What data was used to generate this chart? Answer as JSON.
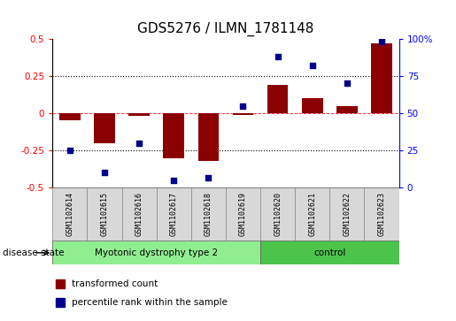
{
  "title": "GDS5276 / ILMN_1781148",
  "samples": [
    "GSM1102614",
    "GSM1102615",
    "GSM1102616",
    "GSM1102617",
    "GSM1102618",
    "GSM1102619",
    "GSM1102620",
    "GSM1102621",
    "GSM1102622",
    "GSM1102623"
  ],
  "transformed_count": [
    -0.05,
    -0.2,
    -0.02,
    -0.3,
    -0.32,
    -0.01,
    0.19,
    0.1,
    0.05,
    0.47
  ],
  "percentile_rank": [
    25,
    10,
    30,
    5,
    7,
    55,
    88,
    82,
    70,
    98
  ],
  "disease_groups": [
    {
      "label": "Myotonic dystrophy type 2",
      "start": 0,
      "end": 6,
      "color": "#90ee90"
    },
    {
      "label": "control",
      "start": 6,
      "end": 10,
      "color": "#4cc44c"
    }
  ],
  "ylim_left": [
    -0.5,
    0.5
  ],
  "ylim_right": [
    0,
    100
  ],
  "yticks_left": [
    -0.5,
    -0.25,
    0.0,
    0.25,
    0.5
  ],
  "yticks_right": [
    0,
    25,
    50,
    75,
    100
  ],
  "hlines_dotted": [
    0.25,
    -0.25
  ],
  "hline_zero": 0.0,
  "bar_color": "#8B0000",
  "dot_color": "#00008B",
  "bg_color": "#ffffff",
  "legend_bar_label": "transformed count",
  "legend_dot_label": "percentile rank within the sample",
  "disease_state_label": "disease state",
  "title_fontsize": 11,
  "axis_fontsize": 7.5,
  "tick_fontsize": 7,
  "sample_fontsize": 6,
  "legend_fontsize": 7.5
}
